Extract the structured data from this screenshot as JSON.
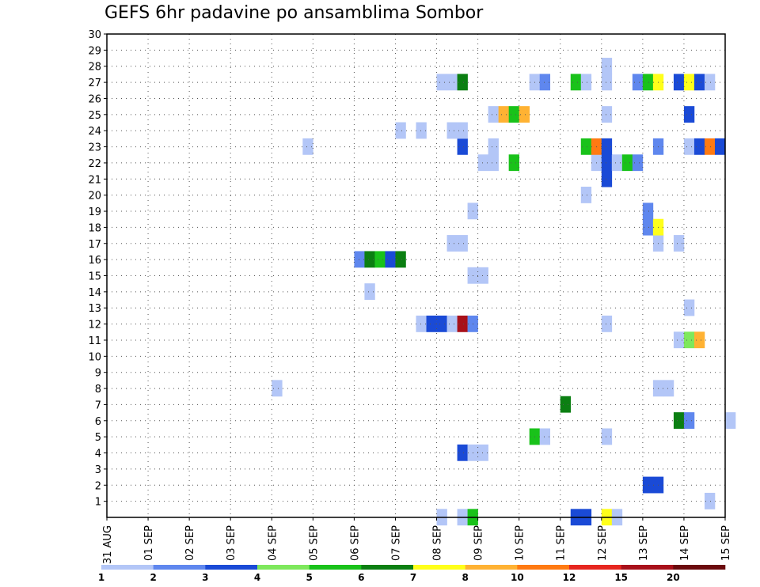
{
  "chart_data": {
    "type": "heatmap",
    "title": "GEFS 6hr padavine po ansamblima Sombor",
    "xlabel": "",
    "ylabel": "",
    "x_ticks": [
      "31 AUG",
      "01 SEP",
      "02 SEP",
      "03 SEP",
      "04 SEP",
      "05 SEP",
      "06 SEP",
      "07 SEP",
      "08 SEP",
      "09 SEP",
      "10 SEP",
      "11 SEP",
      "12 SEP",
      "13 SEP",
      "14 SEP",
      "15 SEP"
    ],
    "y_ticks": [
      "1",
      "2",
      "3",
      "4",
      "5",
      "6",
      "7",
      "8",
      "9",
      "10",
      "11",
      "12",
      "13",
      "14",
      "15",
      "16",
      "17",
      "18",
      "19",
      "20",
      "21",
      "22",
      "23",
      "24",
      "25",
      "26",
      "27",
      "28",
      "29",
      "30"
    ],
    "ylim": [
      0,
      30
    ],
    "xlim_days": [
      0,
      15
    ],
    "grid": true,
    "legend": {
      "placement": "bottom",
      "colors": [
        "#b3c6f7",
        "#5f87ee",
        "#1a4ad6",
        "#7ee85c",
        "#19c21a",
        "#0b7f12",
        "#ffff1a",
        "#ffb233",
        "#ff7a12",
        "#e6261f",
        "#a8101a",
        "#6b0a0d"
      ],
      "labels": [
        "1",
        "2",
        "3",
        "4",
        "5",
        "6",
        "7",
        "8",
        "10",
        "12",
        "15",
        "20"
      ]
    },
    "cells": [
      {
        "day": 8.0,
        "member": 0,
        "c": 0
      },
      {
        "day": 8.5,
        "member": 0,
        "c": 0
      },
      {
        "day": 8.75,
        "member": 0,
        "c": 4
      },
      {
        "day": 11.25,
        "member": 0,
        "c": 2
      },
      {
        "day": 11.5,
        "member": 0,
        "c": 2
      },
      {
        "day": 12.0,
        "member": 0,
        "c": 6
      },
      {
        "day": 12.25,
        "member": 0,
        "c": 0
      },
      {
        "day": 14.5,
        "member": 1,
        "c": 0
      },
      {
        "day": 13.0,
        "member": 2,
        "c": 2
      },
      {
        "day": 13.25,
        "member": 2,
        "c": 2
      },
      {
        "day": 8.5,
        "member": 4,
        "c": 2
      },
      {
        "day": 8.75,
        "member": 4,
        "c": 0
      },
      {
        "day": 9.0,
        "member": 4,
        "c": 0
      },
      {
        "day": 10.25,
        "member": 5,
        "c": 4
      },
      {
        "day": 10.5,
        "member": 5,
        "c": 0
      },
      {
        "day": 12.0,
        "member": 5,
        "c": 0
      },
      {
        "day": 13.75,
        "member": 6,
        "c": 5
      },
      {
        "day": 14.0,
        "member": 6,
        "c": 1
      },
      {
        "day": 15.0,
        "member": 6,
        "c": 0
      },
      {
        "day": 11.0,
        "member": 7,
        "c": 5
      },
      {
        "day": 4.0,
        "member": 8,
        "c": 0
      },
      {
        "day": 13.25,
        "member": 8,
        "c": 0
      },
      {
        "day": 13.5,
        "member": 8,
        "c": 0
      },
      {
        "day": 13.75,
        "member": 11,
        "c": 0
      },
      {
        "day": 14.0,
        "member": 11,
        "c": 3
      },
      {
        "day": 14.25,
        "member": 11,
        "c": 7
      },
      {
        "day": 7.5,
        "member": 12,
        "c": 0
      },
      {
        "day": 7.75,
        "member": 12,
        "c": 2
      },
      {
        "day": 8.0,
        "member": 12,
        "c": 2
      },
      {
        "day": 8.25,
        "member": 12,
        "c": 0
      },
      {
        "day": 8.5,
        "member": 12,
        "c": 10
      },
      {
        "day": 8.75,
        "member": 12,
        "c": 1
      },
      {
        "day": 12.0,
        "member": 12,
        "c": 0
      },
      {
        "day": 14.0,
        "member": 13,
        "c": 0
      },
      {
        "day": 6.25,
        "member": 14,
        "c": 0
      },
      {
        "day": 8.75,
        "member": 15,
        "c": 0
      },
      {
        "day": 9.0,
        "member": 15,
        "c": 0
      },
      {
        "day": 6.0,
        "member": 16,
        "c": 1
      },
      {
        "day": 6.25,
        "member": 16,
        "c": 5
      },
      {
        "day": 6.5,
        "member": 16,
        "c": 4
      },
      {
        "day": 6.75,
        "member": 16,
        "c": 2
      },
      {
        "day": 7.0,
        "member": 16,
        "c": 5
      },
      {
        "day": 8.25,
        "member": 17,
        "c": 0
      },
      {
        "day": 8.5,
        "member": 17,
        "c": 0
      },
      {
        "day": 13.25,
        "member": 17,
        "c": 0
      },
      {
        "day": 13.75,
        "member": 17,
        "c": 0
      },
      {
        "day": 13.0,
        "member": 18,
        "c": 1
      },
      {
        "day": 13.25,
        "member": 18,
        "c": 6
      },
      {
        "day": 8.75,
        "member": 19,
        "c": 0
      },
      {
        "day": 13.0,
        "member": 19,
        "c": 1
      },
      {
        "day": 11.5,
        "member": 20,
        "c": 0
      },
      {
        "day": 12.0,
        "member": 21,
        "c": 2
      },
      {
        "day": 9.0,
        "member": 22,
        "c": 0
      },
      {
        "day": 9.25,
        "member": 22,
        "c": 0
      },
      {
        "day": 9.75,
        "member": 22,
        "c": 4
      },
      {
        "day": 11.75,
        "member": 22,
        "c": 0
      },
      {
        "day": 12.0,
        "member": 22,
        "c": 2
      },
      {
        "day": 12.25,
        "member": 22,
        "c": 0
      },
      {
        "day": 12.5,
        "member": 22,
        "c": 4
      },
      {
        "day": 12.75,
        "member": 22,
        "c": 1
      },
      {
        "day": 4.75,
        "member": 23,
        "c": 0
      },
      {
        "day": 8.5,
        "member": 23,
        "c": 2
      },
      {
        "day": 9.25,
        "member": 23,
        "c": 0
      },
      {
        "day": 11.5,
        "member": 23,
        "c": 4
      },
      {
        "day": 11.75,
        "member": 23,
        "c": 8
      },
      {
        "day": 12.0,
        "member": 23,
        "c": 2
      },
      {
        "day": 13.25,
        "member": 23,
        "c": 1
      },
      {
        "day": 14.0,
        "member": 23,
        "c": 0
      },
      {
        "day": 14.25,
        "member": 23,
        "c": 2
      },
      {
        "day": 14.5,
        "member": 23,
        "c": 8
      },
      {
        "day": 14.75,
        "member": 23,
        "c": 2
      },
      {
        "day": 7.0,
        "member": 24,
        "c": 0
      },
      {
        "day": 7.5,
        "member": 24,
        "c": 0
      },
      {
        "day": 8.25,
        "member": 24,
        "c": 0
      },
      {
        "day": 8.5,
        "member": 24,
        "c": 0
      },
      {
        "day": 9.25,
        "member": 25,
        "c": 0
      },
      {
        "day": 9.5,
        "member": 25,
        "c": 7
      },
      {
        "day": 9.75,
        "member": 25,
        "c": 4
      },
      {
        "day": 10.0,
        "member": 25,
        "c": 7
      },
      {
        "day": 12.0,
        "member": 25,
        "c": 0
      },
      {
        "day": 14.0,
        "member": 25,
        "c": 2
      },
      {
        "day": 8.0,
        "member": 27,
        "c": 0
      },
      {
        "day": 8.25,
        "member": 27,
        "c": 0
      },
      {
        "day": 8.5,
        "member": 27,
        "c": 5
      },
      {
        "day": 10.25,
        "member": 27,
        "c": 0
      },
      {
        "day": 10.5,
        "member": 27,
        "c": 1
      },
      {
        "day": 11.25,
        "member": 27,
        "c": 4
      },
      {
        "day": 11.5,
        "member": 27,
        "c": 0
      },
      {
        "day": 12.0,
        "member": 27,
        "c": 0
      },
      {
        "day": 12.75,
        "member": 27,
        "c": 1
      },
      {
        "day": 13.0,
        "member": 27,
        "c": 4
      },
      {
        "day": 13.25,
        "member": 27,
        "c": 6
      },
      {
        "day": 13.75,
        "member": 27,
        "c": 2
      },
      {
        "day": 14.0,
        "member": 27,
        "c": 6
      },
      {
        "day": 14.25,
        "member": 27,
        "c": 2
      },
      {
        "day": 14.5,
        "member": 27,
        "c": 0
      },
      {
        "day": 12.0,
        "member": 28,
        "c": 0
      }
    ]
  }
}
